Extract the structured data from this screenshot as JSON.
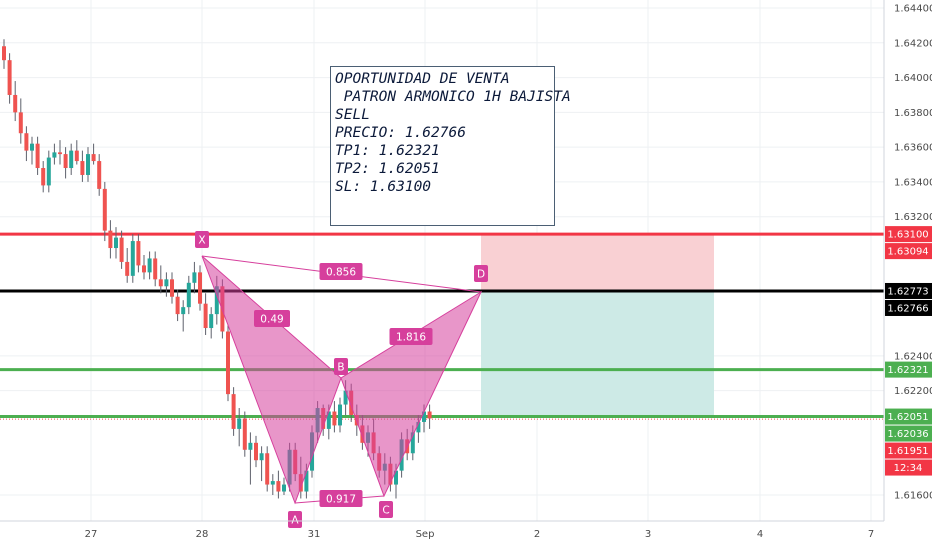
{
  "chart_data": {
    "type": "candlestick",
    "title": "",
    "xlabel": "",
    "ylabel": "",
    "ylim": [
      1.6148,
      1.6448
    ],
    "x_ticks": [
      "27",
      "28",
      "31",
      "Sep",
      "2",
      "3",
      "4",
      "7"
    ],
    "y_ticks": [
      "1.64400",
      "1.64200",
      "1.64000",
      "1.63800",
      "1.63600",
      "1.63400",
      "1.63200",
      "1.62400",
      "1.62200",
      "1.61600"
    ],
    "ohlc": [
      [
        1.6418,
        1.6422,
        1.6405,
        1.641
      ],
      [
        1.641,
        1.6414,
        1.6385,
        1.639
      ],
      [
        1.639,
        1.6398,
        1.6375,
        1.638
      ],
      [
        1.638,
        1.6388,
        1.6362,
        1.6368
      ],
      [
        1.6368,
        1.6372,
        1.6352,
        1.6358
      ],
      [
        1.6358,
        1.6366,
        1.635,
        1.6362
      ],
      [
        1.6362,
        1.6366,
        1.6344,
        1.6348
      ],
      [
        1.6348,
        1.6352,
        1.6334,
        1.6338
      ],
      [
        1.6338,
        1.6358,
        1.6334,
        1.6354
      ],
      [
        1.6354,
        1.6362,
        1.635,
        1.6357
      ],
      [
        1.6357,
        1.6364,
        1.635,
        1.6356
      ],
      [
        1.6356,
        1.636,
        1.6342,
        1.6348
      ],
      [
        1.6348,
        1.6362,
        1.6344,
        1.6358
      ],
      [
        1.6358,
        1.6364,
        1.635,
        1.6352
      ],
      [
        1.6352,
        1.6358,
        1.634,
        1.6344
      ],
      [
        1.6344,
        1.636,
        1.634,
        1.6356
      ],
      [
        1.6356,
        1.6362,
        1.635,
        1.6352
      ],
      [
        1.6352,
        1.6356,
        1.6332,
        1.6336
      ],
      [
        1.6336,
        1.634,
        1.6306,
        1.6312
      ],
      [
        1.6312,
        1.6318,
        1.6296,
        1.6302
      ],
      [
        1.6302,
        1.6314,
        1.6296,
        1.6308
      ],
      [
        1.6308,
        1.6312,
        1.629,
        1.6294
      ],
      [
        1.6294,
        1.6302,
        1.6282,
        1.6286
      ],
      [
        1.6286,
        1.631,
        1.6282,
        1.6306
      ],
      [
        1.6306,
        1.631,
        1.6288,
        1.6292
      ],
      [
        1.6292,
        1.6298,
        1.6284,
        1.6288
      ],
      [
        1.6288,
        1.63,
        1.6284,
        1.6296
      ],
      [
        1.6296,
        1.63,
        1.628,
        1.6284
      ],
      [
        1.6284,
        1.6292,
        1.6276,
        1.628
      ],
      [
        1.628,
        1.6288,
        1.6274,
        1.6284
      ],
      [
        1.6284,
        1.6288,
        1.627,
        1.6274
      ],
      [
        1.6274,
        1.6278,
        1.626,
        1.6264
      ],
      [
        1.6264,
        1.6272,
        1.6254,
        1.6268
      ],
      [
        1.6268,
        1.6286,
        1.6264,
        1.6282
      ],
      [
        1.6282,
        1.6294,
        1.6276,
        1.6288
      ],
      [
        1.6288,
        1.6292,
        1.6266,
        1.627
      ],
      [
        1.627,
        1.6276,
        1.6252,
        1.6256
      ],
      [
        1.6256,
        1.6268,
        1.625,
        1.6264
      ],
      [
        1.6264,
        1.6286,
        1.6258,
        1.628
      ],
      [
        1.628,
        1.6284,
        1.625,
        1.6254
      ],
      [
        1.6254,
        1.6258,
        1.6214,
        1.6218
      ],
      [
        1.6218,
        1.6222,
        1.6194,
        1.6198
      ],
      [
        1.6198,
        1.621,
        1.6188,
        1.6204
      ],
      [
        1.6204,
        1.6208,
        1.6182,
        1.6186
      ],
      [
        1.6186,
        1.6196,
        1.6166,
        1.619
      ],
      [
        1.619,
        1.6194,
        1.6176,
        1.618
      ],
      [
        1.618,
        1.6188,
        1.6168,
        1.6184
      ],
      [
        1.6184,
        1.6188,
        1.6162,
        1.6166
      ],
      [
        1.6166,
        1.6172,
        1.616,
        1.6168
      ],
      [
        1.6168,
        1.6174,
        1.6158,
        1.6162
      ],
      [
        1.6162,
        1.617,
        1.616,
        1.6166
      ],
      [
        1.6166,
        1.619,
        1.6162,
        1.6186
      ],
      [
        1.6186,
        1.619,
        1.6168,
        1.6172
      ],
      [
        1.6172,
        1.6182,
        1.6158,
        1.6162
      ],
      [
        1.6162,
        1.6178,
        1.6158,
        1.6174
      ],
      [
        1.6174,
        1.62,
        1.617,
        1.6196
      ],
      [
        1.6196,
        1.6214,
        1.619,
        1.621
      ],
      [
        1.621,
        1.6212,
        1.6194,
        1.6198
      ],
      [
        1.6198,
        1.6212,
        1.6192,
        1.6208
      ],
      [
        1.6208,
        1.6214,
        1.6196,
        1.62
      ],
      [
        1.62,
        1.6216,
        1.6196,
        1.6212
      ],
      [
        1.6212,
        1.6226,
        1.6206,
        1.622
      ],
      [
        1.622,
        1.6224,
        1.6202,
        1.6206
      ],
      [
        1.6206,
        1.6212,
        1.6194,
        1.62
      ],
      [
        1.62,
        1.6206,
        1.6186,
        1.619
      ],
      [
        1.619,
        1.62,
        1.6182,
        1.6196
      ],
      [
        1.6196,
        1.6204,
        1.618,
        1.6184
      ],
      [
        1.6184,
        1.6188,
        1.617,
        1.6174
      ],
      [
        1.6174,
        1.6184,
        1.6166,
        1.6178
      ],
      [
        1.6178,
        1.6182,
        1.6162,
        1.6166
      ],
      [
        1.6166,
        1.6178,
        1.6158,
        1.6174
      ],
      [
        1.6174,
        1.6196,
        1.617,
        1.6192
      ],
      [
        1.6192,
        1.6198,
        1.618,
        1.6184
      ],
      [
        1.6184,
        1.62,
        1.618,
        1.6196
      ],
      [
        1.6196,
        1.6206,
        1.619,
        1.6202
      ],
      [
        1.6202,
        1.6212,
        1.6196,
        1.6208
      ],
      [
        1.6208,
        1.6212,
        1.6198,
        1.6204
      ]
    ],
    "horizontal_lines": [
      {
        "price": 1.631,
        "label": "1.63100",
        "color": "#f23645"
      },
      {
        "price": 1.62773,
        "label": "1.62773",
        "color": "#000000"
      },
      {
        "price": 1.62321,
        "label": "1.62321",
        "color": "#4caf50"
      },
      {
        "price": 1.62051,
        "label": "1.62051",
        "color": "#4caf50"
      }
    ],
    "price_tags": [
      {
        "price": 1.63094,
        "label": "1.63094",
        "color": "#f23645"
      },
      {
        "price": 1.62766,
        "label": "1.62766",
        "color": "#000000"
      },
      {
        "price": 1.62036,
        "label": "1.62036",
        "color": "#4caf50"
      },
      {
        "price": 1.61951,
        "label": "1.61951",
        "color": "#f23645"
      },
      {
        "price": 1.6188,
        "label": "12:34",
        "color": "#f23645"
      }
    ],
    "current_price": 1.62036,
    "pattern": {
      "color": "#d63f9c",
      "points": [
        {
          "name": "X",
          "label": "X"
        },
        {
          "name": "A",
          "label": "A"
        },
        {
          "name": "B",
          "label": "B"
        },
        {
          "name": "C",
          "label": "C"
        },
        {
          "name": "D",
          "label": "D"
        }
      ],
      "ratios": [
        "0.49",
        "0.856",
        "1.816",
        "0.917"
      ]
    },
    "position": {
      "side": "short",
      "entry": 1.62773,
      "stop": 1.631,
      "target": 1.62051,
      "stop_color": "#f9d0d3",
      "target_color": "#cdeae6"
    }
  },
  "note": {
    "lines": [
      "OPORTUNIDAD DE VENTA",
      " PATRON ARMONICO 1H BAJISTA",
      "SELL",
      "PRECIO: 1.62766",
      "TP1: 1.62321",
      "TP2: 1.62051",
      "SL: 1.63100"
    ]
  },
  "colors": {
    "up": "#26a69a",
    "down": "#ef5350",
    "wick": "#5d606b",
    "grid": "#eef0f3"
  }
}
